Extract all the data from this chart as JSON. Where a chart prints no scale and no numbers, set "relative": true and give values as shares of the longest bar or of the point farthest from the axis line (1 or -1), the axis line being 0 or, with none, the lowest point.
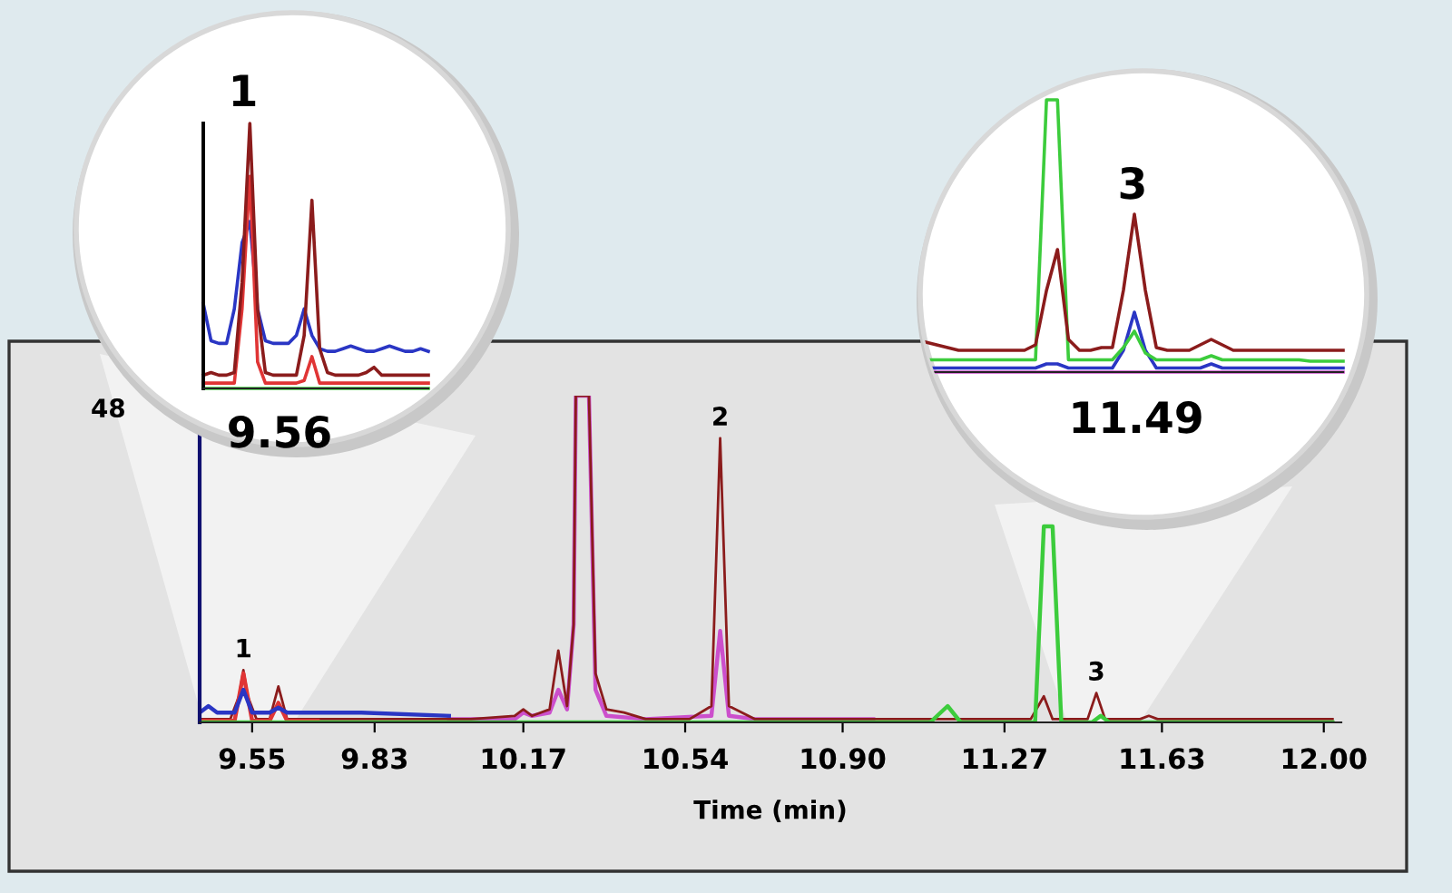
{
  "chart_data": [
    {
      "type": "line",
      "relative": true,
      "xlabel": "Time (min)",
      "xlim": [
        9.43,
        12.04
      ],
      "xticks": [
        9.55,
        9.83,
        10.17,
        10.54,
        {
          "value": 10.9,
          "label": "10.90"
        },
        11.27,
        11.63,
        {
          "value": 12.0,
          "label": "12.00"
        }
      ],
      "annotations": [
        "48",
        {
          "text": "1",
          "x": 9.53,
          "y": 0.16
        },
        {
          "text": "2",
          "x": 10.62,
          "y": 0.87
        },
        {
          "text": "3",
          "x": 11.48,
          "y": 0.09
        }
      ],
      "series": [
        {
          "color": "#cc4fcc",
          "x": [
            10.0,
            10.15,
            10.17,
            10.19,
            10.23,
            10.25,
            10.27,
            10.285,
            10.29,
            10.32,
            10.335,
            10.36,
            10.45,
            10.6,
            10.62,
            10.64,
            10.7,
            10.97
          ],
          "values": [
            0.01,
            0.01,
            0.03,
            0.02,
            0.03,
            0.1,
            0.04,
            0.3,
            1,
            1,
            0.1,
            0.02,
            0.01,
            0.02,
            0.28,
            0.02,
            0.01,
            0.01
          ]
        },
        {
          "color": "#8b1c1c",
          "x": [
            9.43,
            9.5,
            9.52,
            9.53,
            9.54,
            9.56,
            9.59,
            9.6,
            9.61,
            9.63,
            9.7,
            9.9,
            10.05,
            10.15,
            10.17,
            10.19,
            10.23,
            10.25,
            10.27,
            10.285,
            10.29,
            10.32,
            10.335,
            10.36,
            10.4,
            10.45,
            10.55,
            10.6,
            10.62,
            10.64,
            10.7,
            11.0,
            11.33,
            11.36,
            11.38,
            11.46,
            11.48,
            11.5,
            11.58,
            11.6,
            11.62,
            12.02
          ],
          "values": [
            0.01,
            0.01,
            0.08,
            0.16,
            0.08,
            0.01,
            0.01,
            0.06,
            0.11,
            0.01,
            0.01,
            0.01,
            0.01,
            0.02,
            0.04,
            0.02,
            0.04,
            0.22,
            0.05,
            0.3,
            1,
            1,
            0.15,
            0.04,
            0.03,
            0.01,
            0.01,
            0.05,
            0.87,
            0.05,
            0.01,
            0.01,
            0.01,
            0.08,
            0.01,
            0.01,
            0.09,
            0.01,
            0.01,
            0.02,
            0.01,
            0.01
          ]
        },
        {
          "color": "#e03535",
          "x": [
            9.43,
            9.51,
            9.53,
            9.55,
            9.59,
            9.61,
            9.63,
            9.7
          ],
          "values": [
            0.005,
            0.005,
            0.15,
            0.005,
            0.005,
            0.06,
            0.005,
            0.005
          ]
        },
        {
          "color": "#2a36c4",
          "x": [
            9.43,
            9.45,
            9.47,
            9.51,
            9.53,
            9.55,
            9.59,
            9.61,
            9.63,
            9.8,
            10.0
          ],
          "values": [
            0.03,
            0.05,
            0.03,
            0.03,
            0.1,
            0.03,
            0.03,
            0.045,
            0.03,
            0.03,
            0.02
          ]
        },
        {
          "color": "#3ccc3c",
          "x": [
            9.43,
            11.1,
            11.14,
            11.17,
            11.34,
            11.36,
            11.38,
            11.4,
            11.47,
            11.49,
            11.51,
            12.02
          ],
          "values": [
            0,
            0,
            0.05,
            0,
            0,
            0.6,
            0.6,
            0,
            0,
            0.02,
            0,
            0
          ]
        }
      ]
    },
    {
      "type": "line",
      "relative": true,
      "categories": [
        null,
        null,
        null,
        null,
        null,
        null,
        null,
        null,
        null,
        null,
        null,
        null,
        null,
        null,
        null,
        null,
        null,
        null,
        null,
        null,
        null,
        null,
        null,
        null,
        null,
        null,
        null,
        null,
        null,
        null
      ],
      "annotations": [
        "9.56",
        "1"
      ],
      "series": [
        {
          "color": "#3ccc3c",
          "values": [
            0,
            0,
            0,
            0,
            0,
            0,
            0,
            0,
            0,
            0,
            0,
            0,
            0,
            0,
            0,
            0,
            0,
            0,
            0,
            0,
            0,
            0,
            0,
            0,
            0,
            0,
            0,
            0,
            0,
            0
          ]
        },
        {
          "color": "#2a36c4",
          "values": [
            0.32,
            0.18,
            0.17,
            0.17,
            0.3,
            0.55,
            0.63,
            0.3,
            0.18,
            0.17,
            0.17,
            0.17,
            0.2,
            0.3,
            0.2,
            0.15,
            0.14,
            0.14,
            0.15,
            0.16,
            0.15,
            0.14,
            0.14,
            0.15,
            0.16,
            0.15,
            0.14,
            0.14,
            0.15,
            0.14
          ]
        },
        {
          "color": "#e03535",
          "values": [
            0.02,
            0.02,
            0.02,
            0.02,
            0.02,
            0.3,
            0.8,
            0.1,
            0.02,
            0.02,
            0.02,
            0.02,
            0.02,
            0.03,
            0.12,
            0.02,
            0.02,
            0.02,
            0.02,
            0.02,
            0.02,
            0.02,
            0.02,
            0.02,
            0.02,
            0.02,
            0.02,
            0.02,
            0.02,
            0.02
          ]
        },
        {
          "color": "#8b1c1c",
          "values": [
            0.05,
            0.06,
            0.05,
            0.05,
            0.06,
            0.4,
            1,
            0.3,
            0.06,
            0.05,
            0.05,
            0.05,
            0.05,
            0.2,
            0.71,
            0.15,
            0.06,
            0.05,
            0.05,
            0.05,
            0.05,
            0.06,
            0.08,
            0.05,
            0.05,
            0.05,
            0.05,
            0.05,
            0.05,
            0.05
          ]
        }
      ]
    },
    {
      "type": "line",
      "relative": true,
      "categories": [
        null,
        null,
        null,
        null,
        null,
        null,
        null,
        null,
        null,
        null,
        null,
        null,
        null,
        null,
        null,
        null,
        null,
        null,
        null,
        null,
        null,
        null,
        null,
        null,
        null,
        null,
        null,
        null,
        null,
        null,
        null,
        null,
        null,
        null,
        null,
        null,
        null,
        null,
        null
      ],
      "annotations": [
        "11.49",
        "3"
      ],
      "series": [
        {
          "color": "#cc4fcc",
          "values": [
            0,
            0,
            0,
            0,
            0,
            0,
            0,
            0,
            0,
            0,
            0,
            0,
            0,
            0,
            0,
            0,
            0,
            0,
            0,
            0,
            0,
            0,
            0,
            0,
            0,
            0,
            0,
            0,
            0,
            0,
            0,
            0,
            0,
            0,
            0,
            0,
            0,
            0,
            0
          ]
        },
        {
          "color": "#2a36c4",
          "values": [
            0.015,
            0.015,
            0.015,
            0.015,
            0.015,
            0.015,
            0.015,
            0.015,
            0.015,
            0.015,
            0.015,
            0.03,
            0.03,
            0.015,
            0.015,
            0.015,
            0.015,
            0.015,
            0.08,
            0.22,
            0.08,
            0.015,
            0.015,
            0.015,
            0.015,
            0.015,
            0.03,
            0.015,
            0.015,
            0.015,
            0.015,
            0.015,
            0.015,
            0.015,
            0.015,
            0.015,
            0.015,
            0.015,
            0.015
          ]
        },
        {
          "color": "#3ccc3c",
          "values": [
            0.045,
            0.045,
            0.045,
            0.045,
            0.045,
            0.045,
            0.045,
            0.045,
            0.045,
            0.045,
            0.045,
            1,
            1,
            0.045,
            0.045,
            0.045,
            0.045,
            0.045,
            0.09,
            0.15,
            0.07,
            0.045,
            0.045,
            0.045,
            0.045,
            0.045,
            0.06,
            0.045,
            0.045,
            0.045,
            0.045,
            0.045,
            0.045,
            0.045,
            0.045,
            0.04,
            0.04,
            0.04,
            0.04
          ]
        },
        {
          "color": "#8b1c1c",
          "values": [
            0.11,
            0.1,
            0.09,
            0.08,
            0.08,
            0.08,
            0.08,
            0.08,
            0.08,
            0.08,
            0.1,
            0.3,
            0.45,
            0.12,
            0.08,
            0.08,
            0.09,
            0.09,
            0.3,
            0.58,
            0.3,
            0.09,
            0.08,
            0.08,
            0.08,
            0.1,
            0.12,
            0.1,
            0.08,
            0.08,
            0.08,
            0.08,
            0.08,
            0.08,
            0.08,
            0.08,
            0.08,
            0.08,
            0.08
          ]
        }
      ]
    }
  ]
}
